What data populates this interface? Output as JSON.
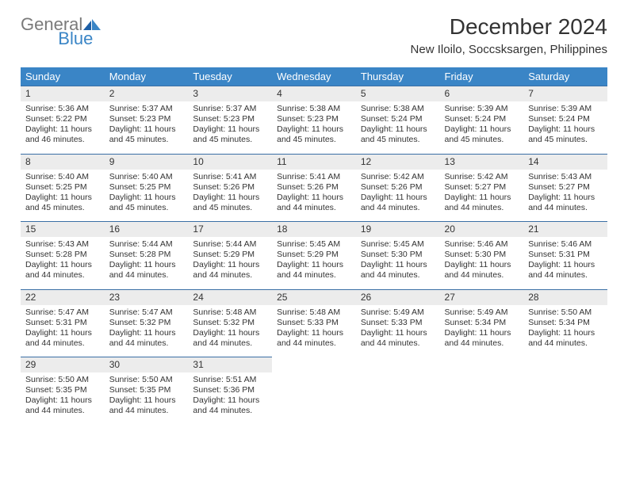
{
  "logo": {
    "part1": "General",
    "part2": "Blue"
  },
  "title": "December 2024",
  "location": "New Iloilo, Soccsksargen, Philippines",
  "colors": {
    "header_bg": "#3a85c6",
    "header_text": "#ffffff",
    "daynum_bg": "#ececec",
    "row_border": "#3a6fa5",
    "logo_gray": "#7a7a7a",
    "logo_blue": "#3a85c6"
  },
  "headers": [
    "Sunday",
    "Monday",
    "Tuesday",
    "Wednesday",
    "Thursday",
    "Friday",
    "Saturday"
  ],
  "weeks": [
    [
      {
        "n": "1",
        "sr": "Sunrise: 5:36 AM",
        "ss": "Sunset: 5:22 PM",
        "d1": "Daylight: 11 hours",
        "d2": "and 46 minutes."
      },
      {
        "n": "2",
        "sr": "Sunrise: 5:37 AM",
        "ss": "Sunset: 5:23 PM",
        "d1": "Daylight: 11 hours",
        "d2": "and 45 minutes."
      },
      {
        "n": "3",
        "sr": "Sunrise: 5:37 AM",
        "ss": "Sunset: 5:23 PM",
        "d1": "Daylight: 11 hours",
        "d2": "and 45 minutes."
      },
      {
        "n": "4",
        "sr": "Sunrise: 5:38 AM",
        "ss": "Sunset: 5:23 PM",
        "d1": "Daylight: 11 hours",
        "d2": "and 45 minutes."
      },
      {
        "n": "5",
        "sr": "Sunrise: 5:38 AM",
        "ss": "Sunset: 5:24 PM",
        "d1": "Daylight: 11 hours",
        "d2": "and 45 minutes."
      },
      {
        "n": "6",
        "sr": "Sunrise: 5:39 AM",
        "ss": "Sunset: 5:24 PM",
        "d1": "Daylight: 11 hours",
        "d2": "and 45 minutes."
      },
      {
        "n": "7",
        "sr": "Sunrise: 5:39 AM",
        "ss": "Sunset: 5:24 PM",
        "d1": "Daylight: 11 hours",
        "d2": "and 45 minutes."
      }
    ],
    [
      {
        "n": "8",
        "sr": "Sunrise: 5:40 AM",
        "ss": "Sunset: 5:25 PM",
        "d1": "Daylight: 11 hours",
        "d2": "and 45 minutes."
      },
      {
        "n": "9",
        "sr": "Sunrise: 5:40 AM",
        "ss": "Sunset: 5:25 PM",
        "d1": "Daylight: 11 hours",
        "d2": "and 45 minutes."
      },
      {
        "n": "10",
        "sr": "Sunrise: 5:41 AM",
        "ss": "Sunset: 5:26 PM",
        "d1": "Daylight: 11 hours",
        "d2": "and 45 minutes."
      },
      {
        "n": "11",
        "sr": "Sunrise: 5:41 AM",
        "ss": "Sunset: 5:26 PM",
        "d1": "Daylight: 11 hours",
        "d2": "and 44 minutes."
      },
      {
        "n": "12",
        "sr": "Sunrise: 5:42 AM",
        "ss": "Sunset: 5:26 PM",
        "d1": "Daylight: 11 hours",
        "d2": "and 44 minutes."
      },
      {
        "n": "13",
        "sr": "Sunrise: 5:42 AM",
        "ss": "Sunset: 5:27 PM",
        "d1": "Daylight: 11 hours",
        "d2": "and 44 minutes."
      },
      {
        "n": "14",
        "sr": "Sunrise: 5:43 AM",
        "ss": "Sunset: 5:27 PM",
        "d1": "Daylight: 11 hours",
        "d2": "and 44 minutes."
      }
    ],
    [
      {
        "n": "15",
        "sr": "Sunrise: 5:43 AM",
        "ss": "Sunset: 5:28 PM",
        "d1": "Daylight: 11 hours",
        "d2": "and 44 minutes."
      },
      {
        "n": "16",
        "sr": "Sunrise: 5:44 AM",
        "ss": "Sunset: 5:28 PM",
        "d1": "Daylight: 11 hours",
        "d2": "and 44 minutes."
      },
      {
        "n": "17",
        "sr": "Sunrise: 5:44 AM",
        "ss": "Sunset: 5:29 PM",
        "d1": "Daylight: 11 hours",
        "d2": "and 44 minutes."
      },
      {
        "n": "18",
        "sr": "Sunrise: 5:45 AM",
        "ss": "Sunset: 5:29 PM",
        "d1": "Daylight: 11 hours",
        "d2": "and 44 minutes."
      },
      {
        "n": "19",
        "sr": "Sunrise: 5:45 AM",
        "ss": "Sunset: 5:30 PM",
        "d1": "Daylight: 11 hours",
        "d2": "and 44 minutes."
      },
      {
        "n": "20",
        "sr": "Sunrise: 5:46 AM",
        "ss": "Sunset: 5:30 PM",
        "d1": "Daylight: 11 hours",
        "d2": "and 44 minutes."
      },
      {
        "n": "21",
        "sr": "Sunrise: 5:46 AM",
        "ss": "Sunset: 5:31 PM",
        "d1": "Daylight: 11 hours",
        "d2": "and 44 minutes."
      }
    ],
    [
      {
        "n": "22",
        "sr": "Sunrise: 5:47 AM",
        "ss": "Sunset: 5:31 PM",
        "d1": "Daylight: 11 hours",
        "d2": "and 44 minutes."
      },
      {
        "n": "23",
        "sr": "Sunrise: 5:47 AM",
        "ss": "Sunset: 5:32 PM",
        "d1": "Daylight: 11 hours",
        "d2": "and 44 minutes."
      },
      {
        "n": "24",
        "sr": "Sunrise: 5:48 AM",
        "ss": "Sunset: 5:32 PM",
        "d1": "Daylight: 11 hours",
        "d2": "and 44 minutes."
      },
      {
        "n": "25",
        "sr": "Sunrise: 5:48 AM",
        "ss": "Sunset: 5:33 PM",
        "d1": "Daylight: 11 hours",
        "d2": "and 44 minutes."
      },
      {
        "n": "26",
        "sr": "Sunrise: 5:49 AM",
        "ss": "Sunset: 5:33 PM",
        "d1": "Daylight: 11 hours",
        "d2": "and 44 minutes."
      },
      {
        "n": "27",
        "sr": "Sunrise: 5:49 AM",
        "ss": "Sunset: 5:34 PM",
        "d1": "Daylight: 11 hours",
        "d2": "and 44 minutes."
      },
      {
        "n": "28",
        "sr": "Sunrise: 5:50 AM",
        "ss": "Sunset: 5:34 PM",
        "d1": "Daylight: 11 hours",
        "d2": "and 44 minutes."
      }
    ],
    [
      {
        "n": "29",
        "sr": "Sunrise: 5:50 AM",
        "ss": "Sunset: 5:35 PM",
        "d1": "Daylight: 11 hours",
        "d2": "and 44 minutes."
      },
      {
        "n": "30",
        "sr": "Sunrise: 5:50 AM",
        "ss": "Sunset: 5:35 PM",
        "d1": "Daylight: 11 hours",
        "d2": "and 44 minutes."
      },
      {
        "n": "31",
        "sr": "Sunrise: 5:51 AM",
        "ss": "Sunset: 5:36 PM",
        "d1": "Daylight: 11 hours",
        "d2": "and 44 minutes."
      },
      null,
      null,
      null,
      null
    ]
  ]
}
